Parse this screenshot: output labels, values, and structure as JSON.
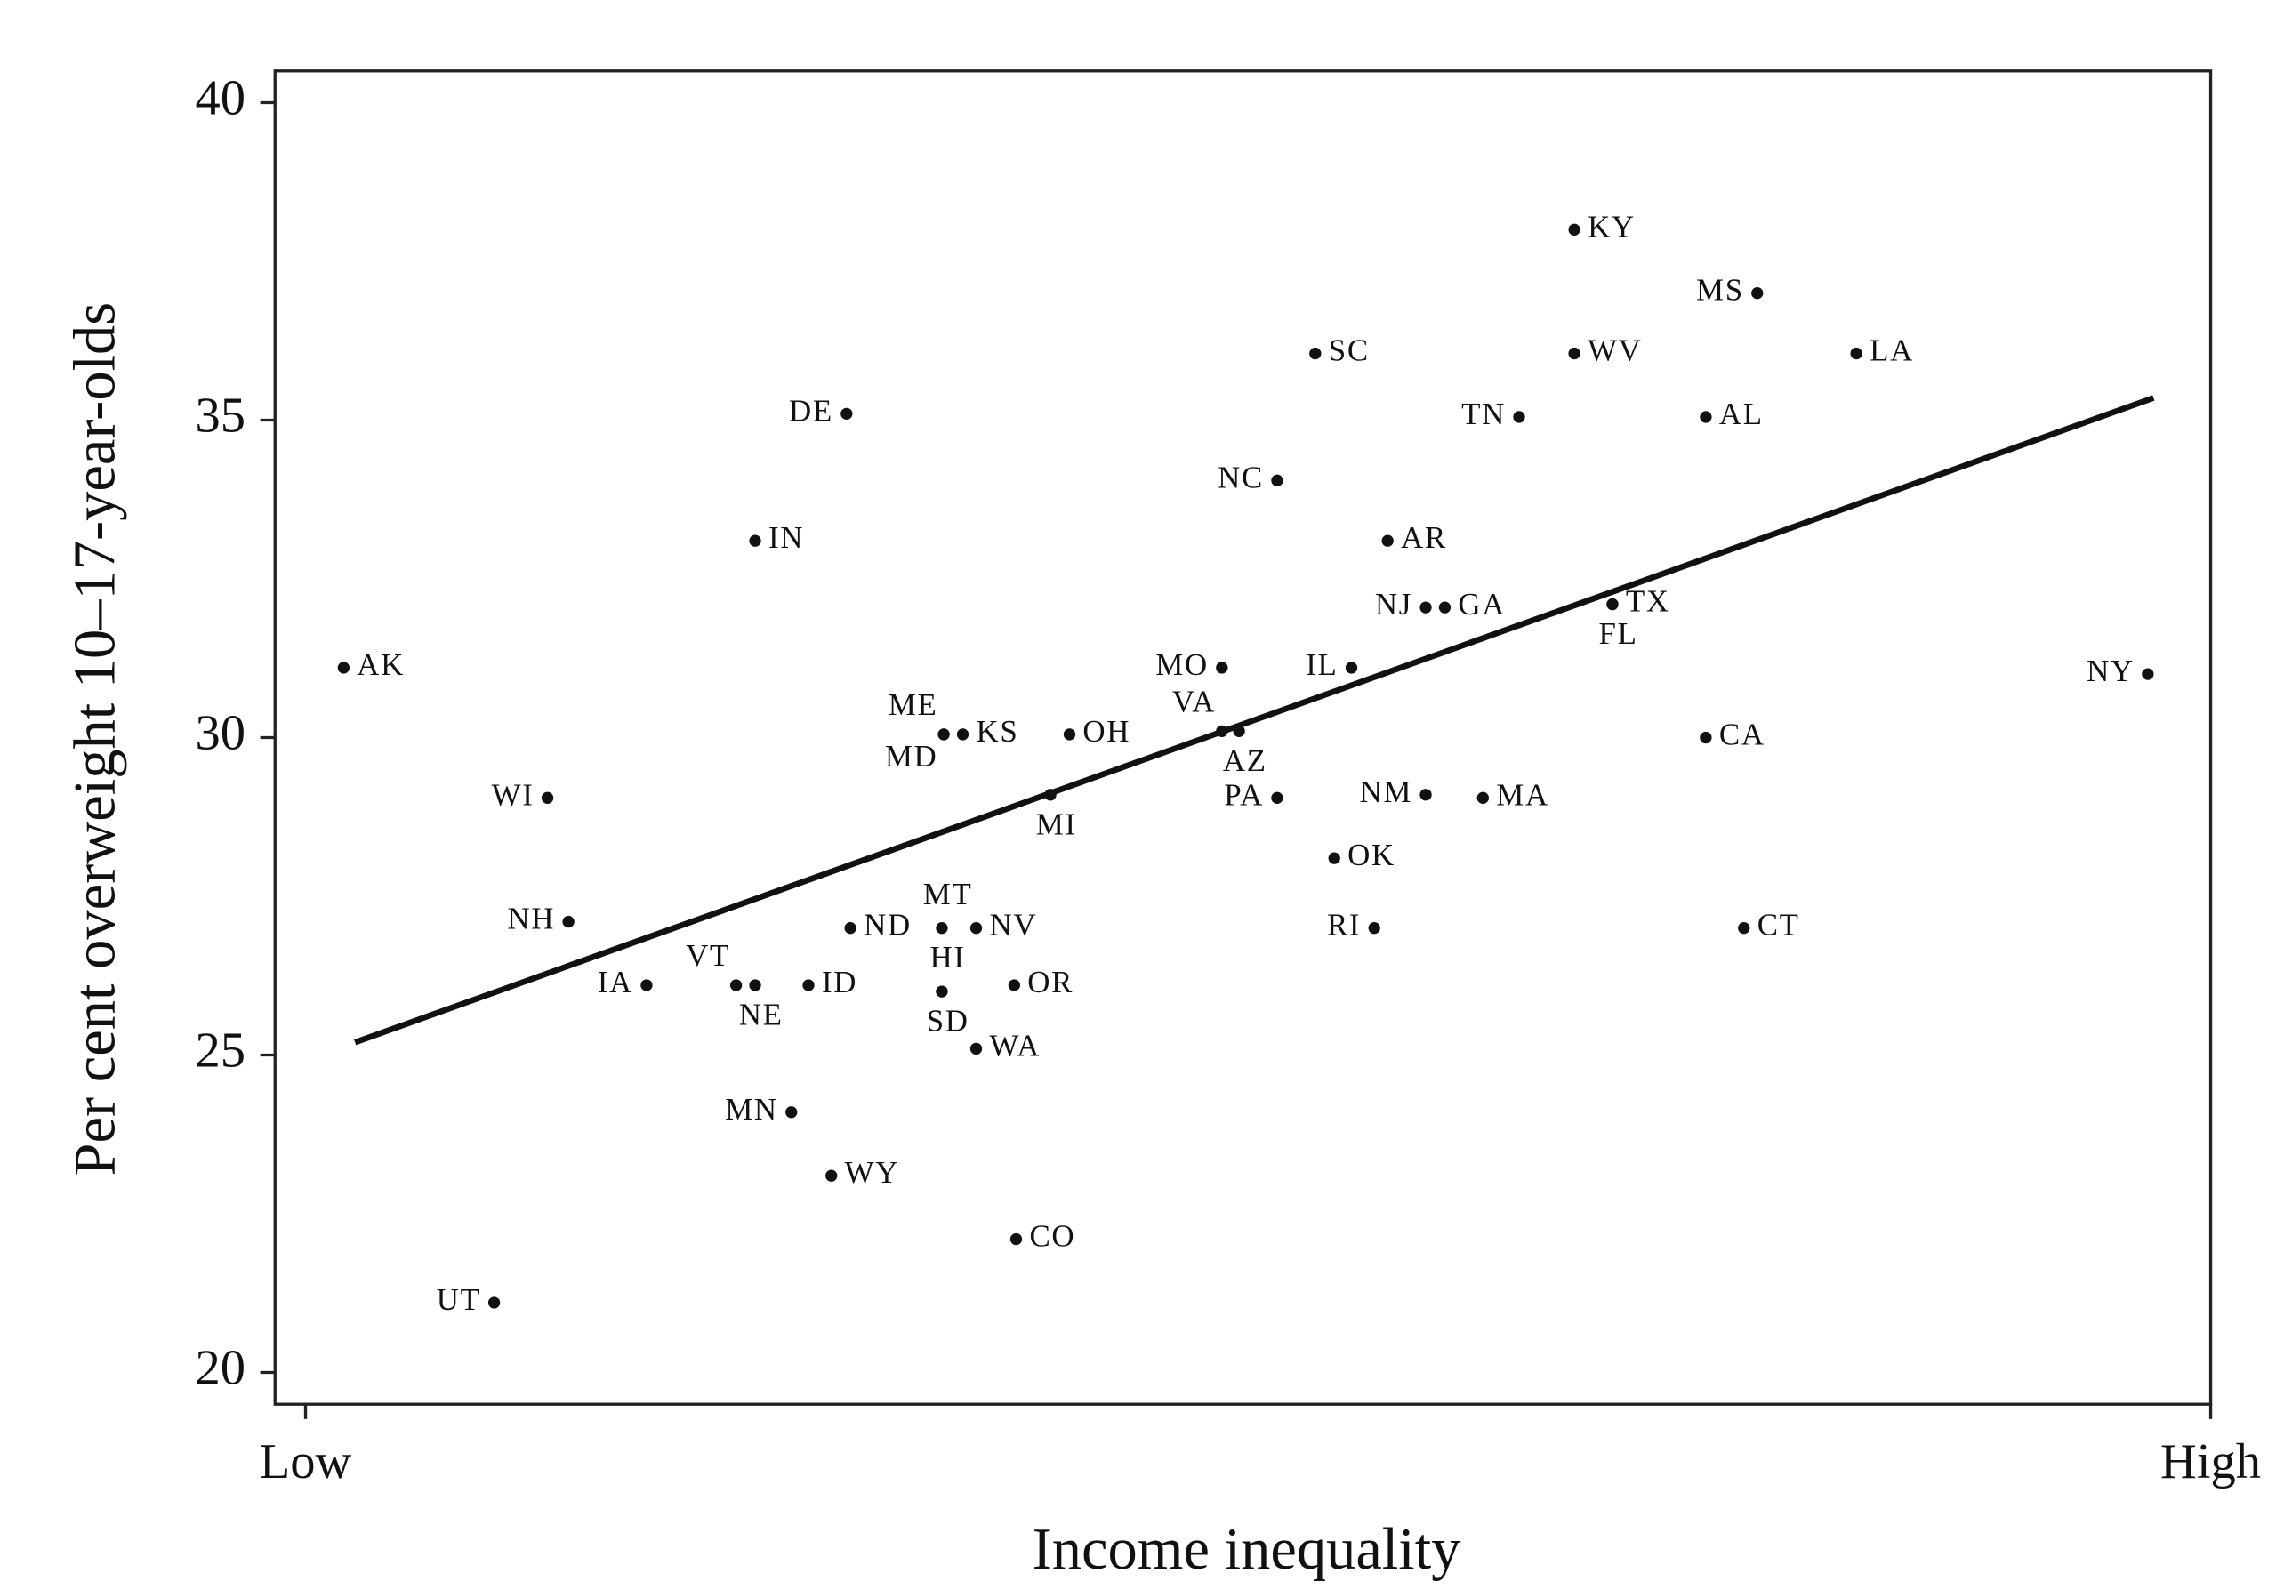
{
  "chart_data": {
    "type": "scatter",
    "x_label": "Income inequality",
    "y_label": "Per cent overweight 10–17-year-olds",
    "xlim": [
      -1.6,
      100
    ],
    "ylim": [
      19.5,
      40.5
    ],
    "xticks": [
      {
        "value": 0,
        "label": "Low"
      },
      {
        "value": 100,
        "label": "High"
      }
    ],
    "yticks": [
      20,
      25,
      30,
      35,
      40
    ],
    "color": "#111111",
    "points": [
      {
        "label": "AK",
        "x": 2.0,
        "y": 31.1
      },
      {
        "label": "WI",
        "x": 12.7,
        "y": 29.05
      },
      {
        "label": "NH",
        "x": 13.8,
        "y": 27.1
      },
      {
        "label": "IA",
        "x": 17.9,
        "y": 26.1
      },
      {
        "label": "VT",
        "x": 22.6,
        "y": 26.1
      },
      {
        "label": "NE",
        "x": 23.6,
        "y": 26.1
      },
      {
        "label": "ID",
        "x": 26.4,
        "y": 26.1
      },
      {
        "label": "MN",
        "x": 25.5,
        "y": 24.1
      },
      {
        "label": "WY",
        "x": 27.6,
        "y": 23.1
      },
      {
        "label": "UT",
        "x": 9.9,
        "y": 21.1
      },
      {
        "label": "IN",
        "x": 23.6,
        "y": 33.1
      },
      {
        "label": "DE",
        "x": 28.4,
        "y": 35.1
      },
      {
        "label": "ND",
        "x": 28.6,
        "y": 27.0
      },
      {
        "label": "MT",
        "x": 33.4,
        "y": 27.0
      },
      {
        "label": "NV",
        "x": 35.2,
        "y": 27.0
      },
      {
        "label": "HI",
        "x": 33.4,
        "y": 26.0
      },
      {
        "label": "SD",
        "x": 33.4,
        "y": 26.0
      },
      {
        "label": "OR",
        "x": 37.2,
        "y": 26.1
      },
      {
        "label": "WA",
        "x": 35.2,
        "y": 25.1
      },
      {
        "label": "CO",
        "x": 37.3,
        "y": 22.1
      },
      {
        "label": "ME",
        "x": 33.5,
        "y": 30.05
      },
      {
        "label": "KS",
        "x": 34.5,
        "y": 30.05
      },
      {
        "label": "MD",
        "x": 33.5,
        "y": 30.05
      },
      {
        "label": "OH",
        "x": 40.1,
        "y": 30.05
      },
      {
        "label": "MI",
        "x": 39.1,
        "y": 29.1
      },
      {
        "label": "MO",
        "x": 48.1,
        "y": 31.1
      },
      {
        "label": "VA",
        "x": 48.1,
        "y": 30.1
      },
      {
        "label": "AZ",
        "x": 49.0,
        "y": 30.1
      },
      {
        "label": "PA",
        "x": 51.0,
        "y": 29.05
      },
      {
        "label": "NC",
        "x": 51.0,
        "y": 34.05
      },
      {
        "label": "SC",
        "x": 53.0,
        "y": 36.05
      },
      {
        "label": "IL",
        "x": 54.9,
        "y": 31.1
      },
      {
        "label": "OK",
        "x": 54.0,
        "y": 28.1
      },
      {
        "label": "RI",
        "x": 56.1,
        "y": 27.0
      },
      {
        "label": "AR",
        "x": 56.8,
        "y": 33.1
      },
      {
        "label": "NJ",
        "x": 58.8,
        "y": 32.05
      },
      {
        "label": "GA",
        "x": 59.8,
        "y": 32.05
      },
      {
        "label": "NM",
        "x": 58.8,
        "y": 29.1
      },
      {
        "label": "MA",
        "x": 61.8,
        "y": 29.05
      },
      {
        "label": "TN",
        "x": 63.7,
        "y": 35.05
      },
      {
        "label": "KY",
        "x": 66.6,
        "y": 38.0
      },
      {
        "label": "WV",
        "x": 66.6,
        "y": 36.05
      },
      {
        "label": "TX",
        "x": 68.6,
        "y": 32.1
      },
      {
        "label": "FL",
        "x": 68.6,
        "y": 32.1
      },
      {
        "label": "AL",
        "x": 73.5,
        "y": 35.05
      },
      {
        "label": "CA",
        "x": 73.5,
        "y": 30.0
      },
      {
        "label": "CT",
        "x": 75.5,
        "y": 27.0
      },
      {
        "label": "MS",
        "x": 76.2,
        "y": 37.0
      },
      {
        "label": "LA",
        "x": 81.4,
        "y": 36.05
      },
      {
        "label": "NY",
        "x": 96.7,
        "y": 31.0
      }
    ],
    "trend": {
      "x": [
        2.6,
        97.0
      ],
      "y": [
        25.2,
        35.35
      ]
    }
  }
}
